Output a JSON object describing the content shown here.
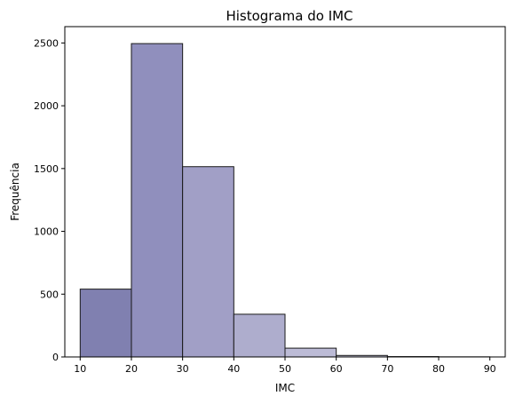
{
  "chart_data": {
    "type": "bar",
    "title": "Histograma do IMC",
    "xlabel": "IMC",
    "ylabel": "Frequência",
    "bins": [
      {
        "start": 10,
        "end": 20,
        "value": 540,
        "color": "#8080b0"
      },
      {
        "start": 20,
        "end": 30,
        "value": 2495,
        "color": "#908fbd"
      },
      {
        "start": 30,
        "end": 40,
        "value": 1515,
        "color": "#a19fc6"
      },
      {
        "start": 40,
        "end": 50,
        "value": 340,
        "color": "#aeadcd"
      },
      {
        "start": 50,
        "end": 60,
        "value": 70,
        "color": "#bcbbd6"
      },
      {
        "start": 60,
        "end": 70,
        "value": 12,
        "color": "#c9c8de"
      },
      {
        "start": 70,
        "end": 80,
        "value": 3,
        "color": "#d6d5e6"
      },
      {
        "start": 80,
        "end": 90,
        "value": 1,
        "color": "#e3e2ee"
      }
    ],
    "xlim": [
      7,
      93
    ],
    "ylim": [
      0,
      2630
    ],
    "xticks": [
      "10",
      "20",
      "30",
      "40",
      "50",
      "60",
      "70",
      "80",
      "90"
    ],
    "yticks": [
      "0",
      "500",
      "1000",
      "1500",
      "2000",
      "2500"
    ],
    "grid": false,
    "legend": "none"
  }
}
